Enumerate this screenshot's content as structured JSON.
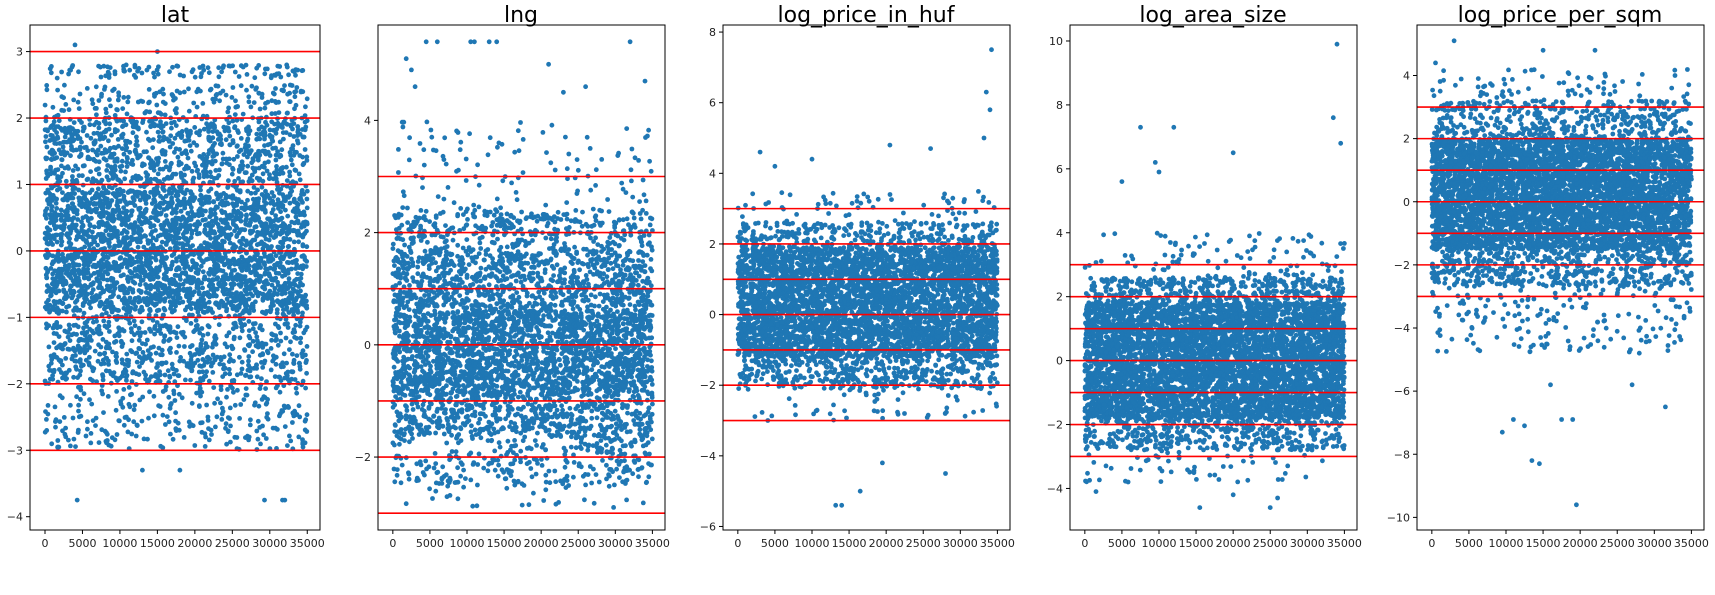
{
  "chart_data": [
    {
      "type": "scatter",
      "title": "lat",
      "x_range": [
        0,
        35000
      ],
      "xlim": [
        -2000,
        36700
      ],
      "ylim": [
        -4.2,
        3.4
      ],
      "xticks": [
        0,
        5000,
        10000,
        15000,
        20000,
        25000,
        30000,
        35000
      ],
      "yticks": [
        -4,
        -3,
        -2,
        -1,
        0,
        1,
        2,
        3
      ],
      "reference_lines": [
        -3,
        -2,
        -1,
        0,
        1,
        2,
        3
      ],
      "point_color": "#1f77b4",
      "line_color": "#ff0000",
      "bands": [
        {
          "y": [
            -0.9,
            0.9
          ],
          "density": 1.0
        },
        {
          "y": [
            0.9,
            2.0
          ],
          "density": 0.55
        },
        {
          "y": [
            -2.0,
            -0.9
          ],
          "density": 0.45
        },
        {
          "y": [
            2.0,
            2.5
          ],
          "density": 0.25
        },
        {
          "y": [
            -3.0,
            -2.0
          ],
          "density": 0.2
        },
        {
          "y": [
            2.6,
            2.8
          ],
          "density": 0.35
        }
      ],
      "outliers": [
        [
          4000,
          3.1
        ],
        [
          4300,
          -3.75
        ],
        [
          29300,
          -3.75
        ],
        [
          31700,
          -3.75
        ],
        [
          32000,
          -3.75
        ],
        [
          15000,
          3.0
        ],
        [
          13000,
          -3.3
        ],
        [
          18000,
          -3.3
        ]
      ]
    },
    {
      "type": "scatter",
      "title": "lng",
      "x_range": [
        0,
        35000
      ],
      "xlim": [
        -2000,
        36700
      ],
      "ylim": [
        -3.3,
        5.7
      ],
      "xticks": [
        0,
        5000,
        10000,
        15000,
        20000,
        25000,
        30000,
        35000
      ],
      "yticks": [
        -2,
        0,
        2,
        4
      ],
      "reference_lines": [
        -3,
        -2,
        -1,
        0,
        1,
        2,
        3
      ],
      "point_color": "#1f77b4",
      "line_color": "#ff0000",
      "bands": [
        {
          "y": [
            -0.9,
            0.6
          ],
          "density": 1.0
        },
        {
          "y": [
            0.6,
            1.7
          ],
          "density": 0.6
        },
        {
          "y": [
            -1.6,
            -0.9
          ],
          "density": 0.55
        },
        {
          "y": [
            1.7,
            2.4
          ],
          "density": 0.35
        },
        {
          "y": [
            -2.5,
            -1.6
          ],
          "density": 0.25
        },
        {
          "y": [
            2.4,
            4.0
          ],
          "density": 0.05
        },
        {
          "y": [
            -2.9,
            -2.5
          ],
          "density": 0.05
        }
      ],
      "outliers": [
        [
          4500,
          5.4
        ],
        [
          6000,
          5.4
        ],
        [
          10500,
          5.4
        ],
        [
          11000,
          5.4
        ],
        [
          13000,
          5.4
        ],
        [
          14000,
          5.4
        ],
        [
          32000,
          5.4
        ],
        [
          1800,
          5.1
        ],
        [
          2500,
          4.9
        ],
        [
          3000,
          4.6
        ],
        [
          21000,
          5.0
        ],
        [
          23000,
          4.5
        ],
        [
          26000,
          4.6
        ],
        [
          34000,
          4.7
        ]
      ]
    },
    {
      "type": "scatter",
      "title": "log_price_in_huf",
      "x_range": [
        0,
        35000
      ],
      "xlim": [
        -2000,
        36700
      ],
      "ylim": [
        -6.1,
        8.2
      ],
      "xticks": [
        0,
        5000,
        10000,
        15000,
        20000,
        25000,
        30000,
        35000
      ],
      "yticks": [
        -6,
        -4,
        -2,
        0,
        2,
        4,
        6,
        8
      ],
      "reference_lines": [
        -3,
        -2,
        -1,
        0,
        1,
        2,
        3
      ],
      "point_color": "#1f77b4",
      "line_color": "#ff0000",
      "bands": [
        {
          "y": [
            -1.2,
            1.9
          ],
          "density": 1.0
        },
        {
          "y": [
            1.9,
            2.6
          ],
          "density": 0.3
        },
        {
          "y": [
            -2.1,
            -1.2
          ],
          "density": 0.35
        },
        {
          "y": [
            2.6,
            3.5
          ],
          "density": 0.05
        },
        {
          "y": [
            -3.0,
            -2.1
          ],
          "density": 0.04
        }
      ],
      "outliers": [
        [
          34200,
          7.5
        ],
        [
          33500,
          6.3
        ],
        [
          34000,
          5.8
        ],
        [
          33200,
          5.0
        ],
        [
          13200,
          -5.4
        ],
        [
          14000,
          -5.4
        ],
        [
          16500,
          -5.0
        ],
        [
          19500,
          -4.2
        ],
        [
          28000,
          -4.5
        ],
        [
          3000,
          4.6
        ],
        [
          5000,
          4.2
        ],
        [
          10000,
          4.4
        ],
        [
          20500,
          4.8
        ],
        [
          26000,
          4.7
        ]
      ]
    },
    {
      "type": "scatter",
      "title": "log_area_size",
      "x_range": [
        0,
        35000
      ],
      "xlim": [
        -2000,
        36700
      ],
      "ylim": [
        -5.3,
        10.5
      ],
      "xticks": [
        0,
        5000,
        10000,
        15000,
        20000,
        25000,
        30000,
        35000
      ],
      "yticks": [
        -4,
        -2,
        0,
        2,
        4,
        6,
        8,
        10
      ],
      "reference_lines": [
        -3,
        -2,
        -1,
        0,
        1,
        2,
        3
      ],
      "point_color": "#1f77b4",
      "line_color": "#ff0000",
      "bands": [
        {
          "y": [
            -1.8,
            1.8
          ],
          "density": 1.0
        },
        {
          "y": [
            1.8,
            2.6
          ],
          "density": 0.35
        },
        {
          "y": [
            -2.8,
            -1.8
          ],
          "density": 0.3
        },
        {
          "y": [
            2.6,
            4.0
          ],
          "density": 0.05
        },
        {
          "y": [
            -3.8,
            -2.8
          ],
          "density": 0.04
        }
      ],
      "outliers": [
        [
          34000,
          9.9
        ],
        [
          7500,
          7.3
        ],
        [
          12000,
          7.3
        ],
        [
          33500,
          7.6
        ],
        [
          34500,
          6.8
        ],
        [
          9500,
          6.2
        ],
        [
          10000,
          5.9
        ],
        [
          20000,
          6.5
        ],
        [
          5000,
          5.6
        ],
        [
          15500,
          -4.6
        ],
        [
          20000,
          -4.2
        ],
        [
          25000,
          -4.6
        ],
        [
          26000,
          -4.3
        ],
        [
          1500,
          -4.1
        ]
      ]
    },
    {
      "type": "scatter",
      "title": "log_price_per_sqm",
      "x_range": [
        0,
        35000
      ],
      "xlim": [
        -2000,
        36700
      ],
      "ylim": [
        -10.4,
        5.6
      ],
      "xticks": [
        0,
        5000,
        10000,
        15000,
        20000,
        25000,
        30000,
        35000
      ],
      "yticks": [
        -10,
        -8,
        -6,
        -4,
        -2,
        0,
        2,
        4
      ],
      "reference_lines": [
        -3,
        -2,
        -1,
        0,
        1,
        2,
        3
      ],
      "point_color": "#1f77b4",
      "line_color": "#ff0000",
      "bands": [
        {
          "y": [
            -1.5,
            2.0
          ],
          "density": 1.0
        },
        {
          "y": [
            2.0,
            3.2
          ],
          "density": 0.25
        },
        {
          "y": [
            -2.7,
            -1.5
          ],
          "density": 0.3
        },
        {
          "y": [
            3.2,
            4.2
          ],
          "density": 0.05
        },
        {
          "y": [
            -4.8,
            -2.7
          ],
          "density": 0.06
        }
      ],
      "outliers": [
        [
          19500,
          -9.6
        ],
        [
          13500,
          -8.2
        ],
        [
          14500,
          -8.3
        ],
        [
          9500,
          -7.3
        ],
        [
          11000,
          -6.9
        ],
        [
          12500,
          -7.1
        ],
        [
          17500,
          -6.9
        ],
        [
          19000,
          -6.9
        ],
        [
          16000,
          -5.8
        ],
        [
          27000,
          -5.8
        ],
        [
          31500,
          -6.5
        ],
        [
          3000,
          5.1
        ],
        [
          15000,
          4.8
        ],
        [
          22000,
          4.8
        ],
        [
          500,
          4.4
        ]
      ]
    }
  ]
}
